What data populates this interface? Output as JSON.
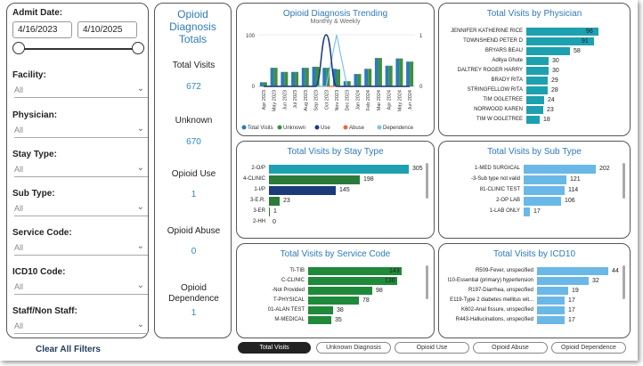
{
  "filters": {
    "admit_date_label": "Admit Date:",
    "start_date": "4/16/2023",
    "end_date": "4/10/2025",
    "facility_label": "Facility:",
    "physician_label": "Physician:",
    "stay_type_label": "Stay Type:",
    "sub_type_label": "Sub Type:",
    "service_code_label": "Service Code:",
    "icd10_code_label": "ICD10 Code:",
    "staff_label": "Staff/Non Staff:",
    "all_value": "All",
    "clear_label": "Clear All Filters"
  },
  "totals": {
    "title": "Opioid Diagnosis Totals",
    "items": [
      {
        "label": "Total Visits",
        "value": "672"
      },
      {
        "label": "Unknown",
        "value": "670"
      },
      {
        "label": "Opioid Use",
        "value": "1"
      },
      {
        "label": "Opioid Abuse",
        "value": "0"
      },
      {
        "label": "Opioid Dependence",
        "value": "1"
      }
    ]
  },
  "trending": {
    "title": "Opioid Diagnosis Trending",
    "subtitle": "Monthly & Weekly",
    "chart_data": {
      "type": "bar",
      "categories": [
        "Apr 2023",
        "May 2023",
        "Jun 2023",
        "Jul 2023",
        "Aug 2023",
        "Sep 2023",
        "Oct 2023",
        "Nov 2023",
        "Dec 2023",
        "Jan 2024",
        "Feb 2024",
        "Mar 2024",
        "Apr 2024",
        "May 2024",
        "Jun 2024"
      ],
      "series": [
        {
          "name": "Total Visits",
          "values": [
            8,
            36,
            28,
            28,
            36,
            38,
            36,
            34,
            10,
            24,
            34,
            55,
            40,
            54,
            48
          ]
        },
        {
          "name": "Unknown",
          "values": [
            8,
            36,
            28,
            28,
            36,
            38,
            36,
            33,
            10,
            24,
            34,
            55,
            40,
            54,
            48
          ]
        },
        {
          "name": "Use",
          "values": [
            0,
            0,
            0,
            0,
            0,
            0,
            1,
            0,
            0,
            0,
            0,
            0,
            0,
            0,
            0
          ]
        },
        {
          "name": "Abuse",
          "values": [
            0,
            0,
            0,
            0,
            0,
            0,
            0,
            0,
            0,
            0,
            0,
            0,
            0,
            0,
            0
          ]
        },
        {
          "name": "Dependence",
          "values": [
            0,
            0,
            0,
            0,
            0,
            0,
            0,
            1,
            0,
            0,
            0,
            0,
            0,
            0,
            0
          ]
        }
      ],
      "ylim": [
        0,
        100
      ],
      "y2lim": [
        0,
        1
      ],
      "yticks": [
        "100",
        "0"
      ],
      "y2ticks": [
        "1",
        "0"
      ],
      "legend": [
        "Total Visits",
        "Unknown",
        "Use",
        "Abuse",
        "Dependence"
      ]
    },
    "colors": {
      "total": "#2b7bb8",
      "unknown": "#3f8f3f",
      "use": "#1a3a7a",
      "abuse": "#e8683c",
      "dependence": "#7fc4e8"
    }
  },
  "physician": {
    "title": "Total Visits by Physician",
    "chart_data": {
      "type": "bar",
      "categories": [
        "JENNIFER KATHERINE RICE",
        "TOWNSHEND PETER D",
        "BRYARS BEAU",
        "Aditya Ghute",
        "DALTREY ROGER HARRY",
        "BRADY RITA",
        "STRINGFELLOW RITA",
        "TIM OGLETREE",
        "NORWOOD KAREN",
        "TIM W OGLETREE"
      ],
      "values": [
        96,
        91,
        58,
        30,
        30,
        29,
        28,
        24,
        23,
        18
      ],
      "xlim": [
        0,
        100
      ]
    },
    "color": "#1da0b0"
  },
  "stay": {
    "title": "Total Visits by Stay Type",
    "chart_data": {
      "type": "bar",
      "categories": [
        "2-O/P",
        "4-CLINIC",
        "1-I/P",
        "3-E.R.",
        "3-ER",
        "2-HH"
      ],
      "values": [
        305,
        198,
        145,
        23,
        1,
        0
      ],
      "xlim": [
        0,
        310
      ]
    },
    "colors": [
      "#1da0b0",
      "#2a7a3a",
      "#1a3a7a",
      "#2a7a3a",
      "#2a7a3a",
      "#2a7a3a"
    ]
  },
  "subtype": {
    "title": "Total Visits by Sub Type",
    "chart_data": {
      "type": "bar",
      "categories": [
        "1-MED SURGICAL",
        "-3-Sub type not valid",
        "81-CLINIC TEST",
        "2-OP LAB",
        "1-LAB ONLY"
      ],
      "values": [
        202,
        121,
        114,
        106,
        17
      ],
      "xlim": [
        0,
        210
      ]
    },
    "color": "#6ab8e8"
  },
  "service": {
    "title": "Total Visits by Service Code",
    "chart_data": {
      "type": "bar",
      "categories": [
        "TI-TIB",
        "C-CLINIC",
        "-Not Provided",
        "T-PHYSICAL",
        "01-ALAN TEST",
        "M-MEDICAL"
      ],
      "values": [
        143,
        136,
        98,
        78,
        38,
        35
      ],
      "xlim": [
        0,
        150
      ]
    },
    "color": "#1f8a3a"
  },
  "icd10": {
    "title": "Total Visits by ICD10",
    "chart_data": {
      "type": "bar",
      "categories": [
        "R509-Fever, unspecified",
        "I10-Essential (primary) hypertension",
        "R197-Diarrhea, unspecified",
        "E119-Type 2 diabetes mellitus wit...",
        "K602-Anal fissure, unspecified",
        "R443-Hallucinations, unspecified"
      ],
      "values": [
        44,
        32,
        19,
        17,
        17,
        17
      ],
      "xlim": [
        0,
        46
      ]
    },
    "color": "#6ab8e8"
  },
  "tabs": [
    "Total Visits",
    "Unknown Diagnosis",
    "Opioid Use",
    "Opioid Abuse",
    "Opioid Dependence"
  ]
}
